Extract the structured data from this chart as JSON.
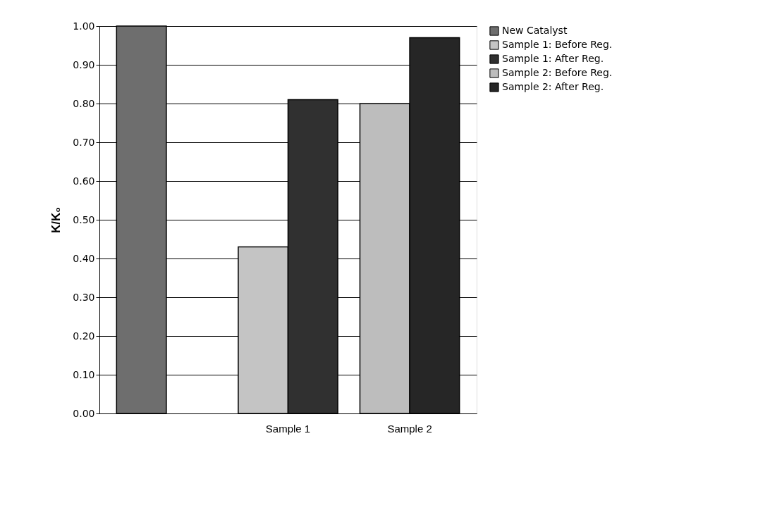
{
  "chart_data": {
    "type": "bar",
    "ylabel": "K/K₀",
    "categories": [
      null,
      "Sample 1",
      "Sample 2"
    ],
    "series": [
      {
        "name": "New Catalyst",
        "color": "#6e6e6e",
        "values": [
          1.0,
          null,
          null
        ]
      },
      {
        "name": "Sample 1: Before Reg.",
        "color": "#c4c4c4",
        "values": [
          null,
          0.43,
          null
        ]
      },
      {
        "name": "Sample 1: After Reg.",
        "color": "#303030",
        "values": [
          null,
          0.81,
          null
        ]
      },
      {
        "name": "Sample 2: Before Reg.",
        "color": "#bdbdbd",
        "values": [
          null,
          null,
          0.8
        ]
      },
      {
        "name": "Sample 2: After Reg.",
        "color": "#262626",
        "values": [
          null,
          null,
          0.97
        ]
      }
    ],
    "ylim": [
      0,
      1
    ],
    "yticks": [
      {
        "value": 0,
        "label": "0.00"
      },
      {
        "value": 0.1,
        "label": "0.10"
      },
      {
        "value": 0.2,
        "label": "0.20"
      },
      {
        "value": 0.3,
        "label": "0.30"
      },
      {
        "value": 0.4,
        "label": "0.40"
      },
      {
        "value": 0.5,
        "label": "0.50"
      },
      {
        "value": 0.6,
        "label": "0.60"
      },
      {
        "value": 0.7,
        "label": "0.70"
      },
      {
        "value": 0.8,
        "label": "0.80"
      },
      {
        "value": 0.9,
        "label": "0.90"
      },
      {
        "value": 1.0,
        "label": "1.00"
      }
    ],
    "grid": "y",
    "legend": "right"
  }
}
